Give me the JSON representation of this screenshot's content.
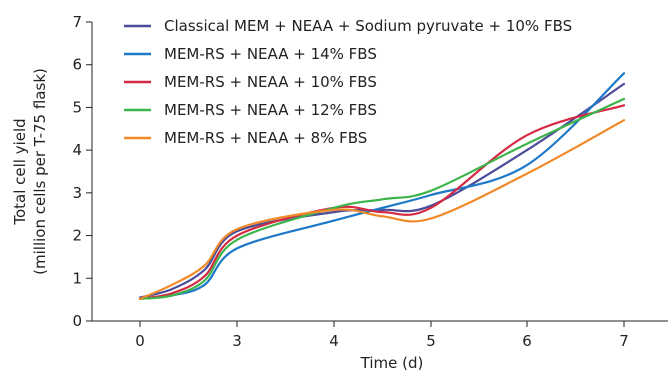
{
  "chart_data": {
    "type": "line",
    "xlabel": "Time (d)",
    "ylabel_lines": [
      "Total cell yield",
      "(million cells per T-75 flask)"
    ],
    "x_ticks": [
      0,
      3,
      4,
      5,
      6,
      7
    ],
    "y_ticks": [
      0,
      1,
      2,
      3,
      4,
      5,
      6,
      7
    ],
    "ylim": [
      0,
      7
    ],
    "grid": false,
    "legend_position": "top-left",
    "series": [
      {
        "name": "Classical MEM + NEAA + Sodium pyruvate + 10% FBS",
        "color": "#4b4d9b",
        "points": [
          [
            0,
            0.55
          ],
          [
            1,
            0.75
          ],
          [
            2,
            1.2
          ],
          [
            3,
            2.1
          ],
          [
            4,
            2.55
          ],
          [
            4.5,
            2.6
          ],
          [
            5,
            2.7
          ],
          [
            6,
            4.0
          ],
          [
            7,
            5.55
          ]
        ]
      },
      {
        "name": "MEM-RS + NEAA + 14% FBS",
        "color": "#1e78c8",
        "points": [
          [
            0,
            0.52
          ],
          [
            1,
            0.6
          ],
          [
            2,
            0.85
          ],
          [
            3,
            1.7
          ],
          [
            4,
            2.35
          ],
          [
            4.5,
            2.65
          ],
          [
            5,
            2.95
          ],
          [
            6,
            3.65
          ],
          [
            7,
            5.8
          ]
        ]
      },
      {
        "name": "MEM-RS + NEAA + 10% FBS",
        "color": "#d42a44",
        "points": [
          [
            0,
            0.52
          ],
          [
            1,
            0.65
          ],
          [
            2,
            1.05
          ],
          [
            3,
            2.0
          ],
          [
            4,
            2.65
          ],
          [
            4.5,
            2.55
          ],
          [
            5,
            2.65
          ],
          [
            6,
            4.35
          ],
          [
            7,
            5.05
          ]
        ]
      },
      {
        "name": "MEM-RS + NEAA + 12% FBS",
        "color": "#3cb44b",
        "points": [
          [
            0,
            0.52
          ],
          [
            1,
            0.6
          ],
          [
            2,
            0.95
          ],
          [
            3,
            1.9
          ],
          [
            4,
            2.65
          ],
          [
            4.5,
            2.85
          ],
          [
            5,
            3.05
          ],
          [
            6,
            4.15
          ],
          [
            7,
            5.2
          ]
        ]
      },
      {
        "name": "MEM-RS + NEAA + 8% FBS",
        "color": "#f08a28",
        "points": [
          [
            0,
            0.52
          ],
          [
            1,
            0.85
          ],
          [
            2,
            1.3
          ],
          [
            3,
            2.15
          ],
          [
            4,
            2.6
          ],
          [
            4.5,
            2.45
          ],
          [
            5,
            2.4
          ],
          [
            6,
            3.45
          ],
          [
            7,
            4.7
          ]
        ]
      }
    ]
  }
}
